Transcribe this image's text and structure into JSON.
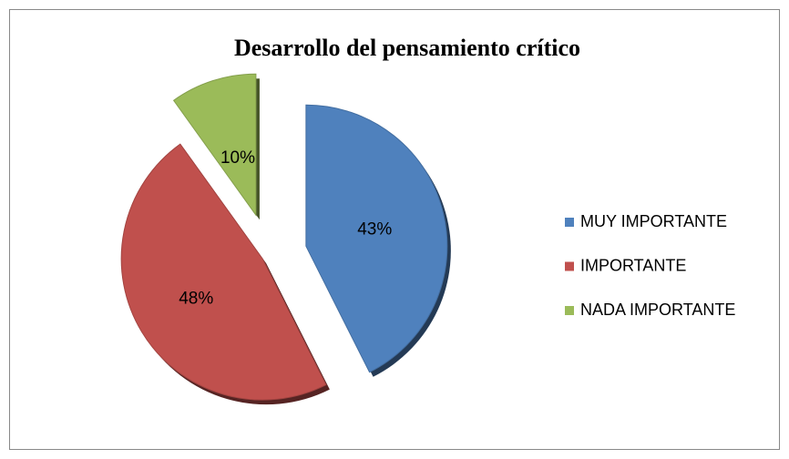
{
  "chart_data": {
    "type": "pie",
    "title": "Desarrollo del pensamiento crítico",
    "categories": [
      "MUY IMPORTANTE",
      "IMPORTANTE",
      "NADA IMPORTANTE"
    ],
    "values": [
      43,
      48,
      10
    ],
    "value_labels": [
      "43%",
      "48%",
      "10%"
    ],
    "colors": [
      "#4f81bd",
      "#c0504d",
      "#9bbb59"
    ],
    "legend": "right"
  }
}
